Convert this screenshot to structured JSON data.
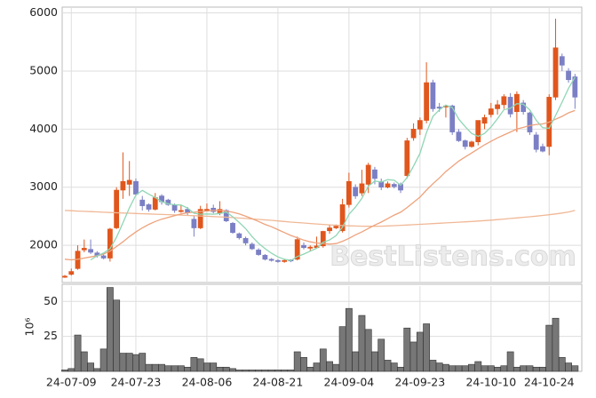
{
  "chart_data": [
    {
      "type": "candlestick",
      "watermark": "BestListens.com",
      "up_color": "#e0561c",
      "down_color": "#7b7fc4",
      "ylim": [
        1360,
        6100
      ],
      "yticks": [
        2000,
        3000,
        4000,
        5000,
        6000
      ],
      "grid": true,
      "open": [
        1450,
        1500,
        1600,
        1920,
        1930,
        1870,
        1820,
        1780,
        2300,
        2950,
        3050,
        3100,
        2780,
        2700,
        2620,
        2850,
        2780,
        2700,
        2580,
        2620,
        2450,
        2300,
        2600,
        2640,
        2560,
        2600,
        2380,
        2200,
        2120,
        2020,
        1920,
        1830,
        1760,
        1740,
        1720,
        1750,
        1760,
        2000,
        1950,
        1960,
        1990,
        2250,
        2300,
        2250,
        2700,
        3000,
        2900,
        3050,
        3300,
        3100,
        3000,
        3050,
        3050,
        3200,
        3850,
        4000,
        4150,
        4800,
        4380,
        4380,
        4400,
        3950,
        3800,
        3700,
        3780,
        4100,
        4250,
        4350,
        4420,
        4550,
        4300,
        4450,
        4280,
        3900,
        3700,
        3700,
        4550,
        5250,
        5000,
        4900
      ],
      "high": [
        1490,
        1600,
        2000,
        2100,
        2100,
        1900,
        1850,
        2300,
        3000,
        3600,
        3450,
        3150,
        2850,
        2720,
        2900,
        2880,
        2800,
        2720,
        2700,
        2660,
        2500,
        2680,
        2720,
        2700,
        2760,
        2620,
        2400,
        2220,
        2150,
        2050,
        1950,
        1850,
        1780,
        1760,
        1760,
        1760,
        2150,
        2050,
        2000,
        2150,
        2250,
        2350,
        2360,
        2800,
        3250,
        3050,
        3300,
        3420,
        3350,
        3150,
        3100,
        3080,
        3080,
        3850,
        4100,
        4200,
        5150,
        4850,
        4450,
        4420,
        4420,
        4000,
        3820,
        3800,
        4150,
        4250,
        4450,
        4500,
        4600,
        4620,
        4650,
        4500,
        4300,
        3950,
        3750,
        4600,
        5900,
        5300,
        5050,
        4950
      ],
      "low": [
        1440,
        1480,
        1580,
        1880,
        1850,
        1790,
        1760,
        1720,
        2280,
        2800,
        2850,
        2850,
        2600,
        2580,
        2600,
        2700,
        2680,
        2560,
        2560,
        2520,
        2150,
        2280,
        2580,
        2550,
        2520,
        2400,
        2200,
        2100,
        2000,
        1920,
        1820,
        1740,
        1720,
        1700,
        1700,
        1710,
        1740,
        1930,
        1900,
        1940,
        1960,
        2200,
        2280,
        2220,
        2650,
        2800,
        2850,
        2900,
        3050,
        2950,
        2980,
        2980,
        2900,
        3150,
        3800,
        3900,
        4100,
        4300,
        4300,
        4200,
        3900,
        3780,
        3650,
        3680,
        3720,
        4000,
        4200,
        4250,
        4350,
        4200,
        3950,
        4250,
        3900,
        3600,
        3600,
        3550,
        4500,
        5000,
        4800,
        4350
      ],
      "close": [
        1470,
        1550,
        1900,
        1950,
        1880,
        1820,
        1780,
        2280,
        2950,
        3100,
        3120,
        2880,
        2680,
        2620,
        2820,
        2750,
        2700,
        2600,
        2600,
        2560,
        2300,
        2620,
        2620,
        2580,
        2620,
        2420,
        2220,
        2130,
        2040,
        1940,
        1840,
        1760,
        1740,
        1720,
        1740,
        1730,
        2100,
        1960,
        1970,
        1990,
        2240,
        2300,
        2330,
        2700,
        3100,
        2850,
        3060,
        3380,
        3150,
        3000,
        3060,
        3010,
        2950,
        3800,
        4000,
        4150,
        4800,
        4350,
        4360,
        4400,
        3950,
        3800,
        3700,
        3780,
        4150,
        4200,
        4350,
        4420,
        4560,
        4260,
        4600,
        4300,
        3950,
        3650,
        3620,
        4550,
        5400,
        5100,
        4850,
        4550
      ],
      "series": [
        {
          "color": "#f0b896",
          "values": [
            2600,
            2595,
            2590,
            2585,
            2580,
            2575,
            2570,
            2565,
            2560,
            2556,
            2552,
            2548,
            2544,
            2540,
            2536,
            2532,
            2528,
            2524,
            2520,
            2515,
            2510,
            2505,
            2500,
            2495,
            2490,
            2484,
            2478,
            2470,
            2462,
            2454,
            2446,
            2438,
            2430,
            2420,
            2410,
            2400,
            2392,
            2384,
            2376,
            2368,
            2360,
            2352,
            2346,
            2340,
            2336,
            2332,
            2330,
            2328,
            2328,
            2330,
            2334,
            2338,
            2344,
            2350,
            2356,
            2362,
            2368,
            2374,
            2380,
            2386,
            2392,
            2398,
            2404,
            2410,
            2418,
            2426,
            2434,
            2442,
            2452,
            2462,
            2472,
            2482,
            2492,
            2502,
            2514,
            2526,
            2540,
            2556,
            2574,
            2600
          ]
        },
        {
          "color": "#eea27c",
          "values": [
            1760,
            1750,
            1760,
            1780,
            1800,
            1820,
            1850,
            1900,
            1980,
            2060,
            2150,
            2230,
            2300,
            2360,
            2410,
            2450,
            2480,
            2510,
            2540,
            2560,
            2570,
            2580,
            2590,
            2600,
            2600,
            2590,
            2570,
            2540,
            2500,
            2460,
            2410,
            2360,
            2320,
            2270,
            2220,
            2170,
            2130,
            2090,
            2060,
            2040,
            2030,
            2020,
            2030,
            2070,
            2120,
            2180,
            2230,
            2290,
            2350,
            2400,
            2460,
            2520,
            2570,
            2650,
            2740,
            2830,
            2950,
            3060,
            3160,
            3270,
            3360,
            3450,
            3520,
            3590,
            3660,
            3730,
            3790,
            3850,
            3900,
            3950,
            4000,
            4030,
            4060,
            4080,
            4090,
            4120,
            4170,
            4220,
            4280,
            4320
          ]
        },
        {
          "color": "#8fd6b4",
          "values": [
            null,
            null,
            null,
            null,
            1750,
            1820,
            1866,
            1942,
            2142,
            2386,
            2646,
            2866,
            2946,
            2880,
            2824,
            2750,
            2714,
            2698,
            2694,
            2642,
            2552,
            2536,
            2540,
            2536,
            2548,
            2572,
            2492,
            2394,
            2286,
            2150,
            2034,
            1942,
            1864,
            1800,
            1760,
            1738,
            1806,
            1850,
            1900,
            1950,
            2052,
            2092,
            2166,
            2312,
            2534,
            2656,
            2808,
            3018,
            3108,
            3088,
            3130,
            3120,
            3034,
            3164,
            3364,
            3582,
            3940,
            4220,
            4332,
            4412,
            4372,
            4172,
            4042,
            3926,
            3876,
            3926,
            4036,
            4180,
            4336,
            4358,
            4438,
            4428,
            4334,
            4152,
            4024,
            4014,
            4234,
            4464,
            4704,
            4890
          ]
        }
      ]
    },
    {
      "type": "bar",
      "ylabel": "10⁶",
      "color": "#777777",
      "ylim": [
        0,
        61
      ],
      "yticks": [
        25,
        50
      ],
      "grid": true,
      "categories": [
        null,
        "24-07-09",
        null,
        null,
        null,
        null,
        null,
        null,
        null,
        null,
        null,
        "24-07-23",
        null,
        null,
        null,
        null,
        null,
        null,
        null,
        null,
        null,
        null,
        "24-08-06",
        null,
        null,
        null,
        null,
        null,
        null,
        null,
        null,
        null,
        null,
        "24-08-21",
        null,
        null,
        null,
        null,
        null,
        null,
        null,
        null,
        null,
        null,
        "24-09-04",
        null,
        null,
        null,
        null,
        null,
        null,
        null,
        null,
        null,
        null,
        "24-09-23",
        null,
        null,
        null,
        null,
        null,
        null,
        null,
        null,
        null,
        null,
        "24-10-10",
        null,
        null,
        null,
        null,
        null,
        null,
        null,
        null,
        "24-10-24",
        null,
        null,
        null,
        null
      ],
      "values": [
        1,
        2,
        26,
        14,
        6,
        2,
        16,
        60,
        51,
        13,
        13,
        12,
        13,
        5,
        5,
        5,
        4,
        4,
        4,
        3,
        10,
        9,
        6,
        6,
        3,
        3,
        2,
        1,
        1,
        1,
        1,
        1,
        1,
        1,
        1,
        1,
        14,
        10,
        3,
        6,
        16,
        7,
        5,
        32,
        45,
        14,
        40,
        30,
        14,
        23,
        8,
        6,
        3,
        31,
        21,
        28,
        34,
        8,
        6,
        5,
        4,
        4,
        4,
        5,
        7,
        4,
        4,
        3,
        4,
        14,
        3,
        4,
        4,
        3,
        3,
        33,
        38,
        10,
        6,
        4
      ]
    }
  ]
}
